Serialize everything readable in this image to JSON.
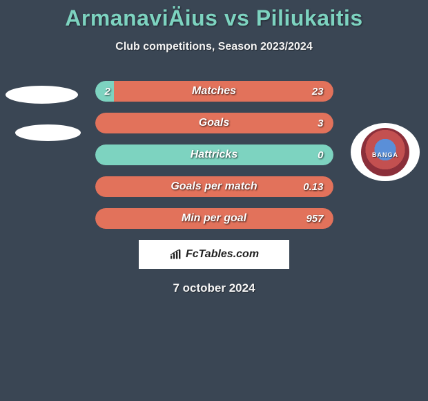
{
  "title": "ArmanaviÄius vs Piliukaitis",
  "subtitle": "Club competitions, Season 2023/2024",
  "date": "7 october 2024",
  "brand": "FcTables.com",
  "logo_text": "BANGA",
  "colors": {
    "background": "#3a4654",
    "accent": "#7dd3c0",
    "alt": "#e2725b",
    "text": "#ffffff"
  },
  "rows": [
    {
      "label": "Matches",
      "left": "2",
      "right": "23",
      "left_pct": 8,
      "right_color": "#e2725b",
      "show_left": true
    },
    {
      "label": "Goals",
      "left": "",
      "right": "3",
      "left_pct": 0,
      "right_color": "#e2725b",
      "show_left": false
    },
    {
      "label": "Hattricks",
      "left": "",
      "right": "0",
      "left_pct": 0,
      "right_color": "#7dd3c0",
      "show_left": false,
      "full": true
    },
    {
      "label": "Goals per match",
      "left": "",
      "right": "0.13",
      "left_pct": 0,
      "right_color": "#e2725b",
      "show_left": false
    },
    {
      "label": "Min per goal",
      "left": "",
      "right": "957",
      "left_pct": 0,
      "right_color": "#e2725b",
      "show_left": false
    }
  ]
}
